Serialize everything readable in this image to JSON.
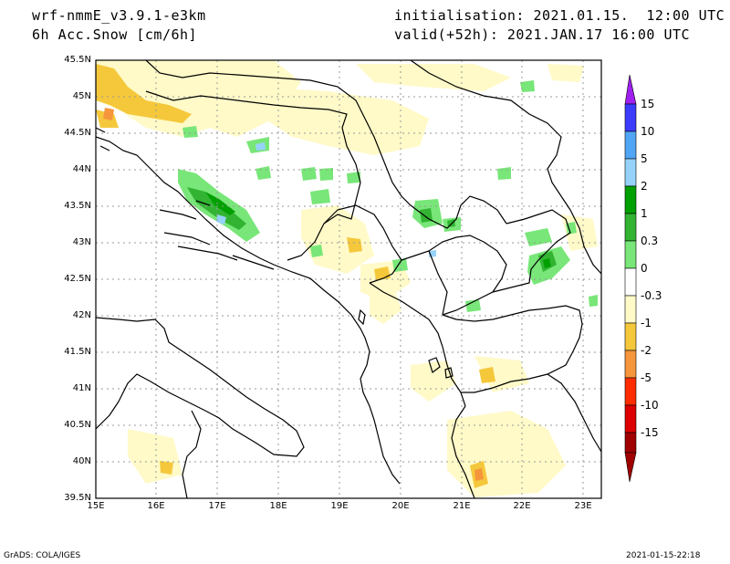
{
  "header": {
    "model": "wrf-nmmE_v3.9.1-e3km",
    "field": "6h Acc.Snow [cm/6h]",
    "init": "initialisation: 2021.01.15.  12:00 UTC",
    "valid": "valid(+52h): 2021.JAN.17 16:00 UTC"
  },
  "map": {
    "lat_labels": [
      "45.5N",
      "45N",
      "44.5N",
      "44N",
      "43.5N",
      "43N",
      "42.5N",
      "42N",
      "41.5N",
      "41N",
      "40.5N",
      "40N",
      "39.5N"
    ],
    "lon_labels": [
      "15E",
      "16E",
      "17E",
      "18E",
      "19E",
      "20E",
      "21E",
      "22E",
      "23E"
    ]
  },
  "colorbar": {
    "levels": [
      "15",
      "10",
      "5",
      "2",
      "1",
      "0.3",
      "0",
      "-0.3",
      "-1",
      "-2",
      "-5",
      "-10",
      "-15"
    ],
    "colors": [
      "#a020f0",
      "#3c3cff",
      "#50a5f5",
      "#96d2fa",
      "#00a000",
      "#32b432",
      "#78e678",
      "#ffffff",
      "#fffac8",
      "#f5c83c",
      "#f5963c",
      "#ff2d00",
      "#dc0000",
      "#a00000"
    ]
  },
  "footer": {
    "left": "GrADS: COLA/IGES",
    "right": "2021-01-15-22:18"
  }
}
